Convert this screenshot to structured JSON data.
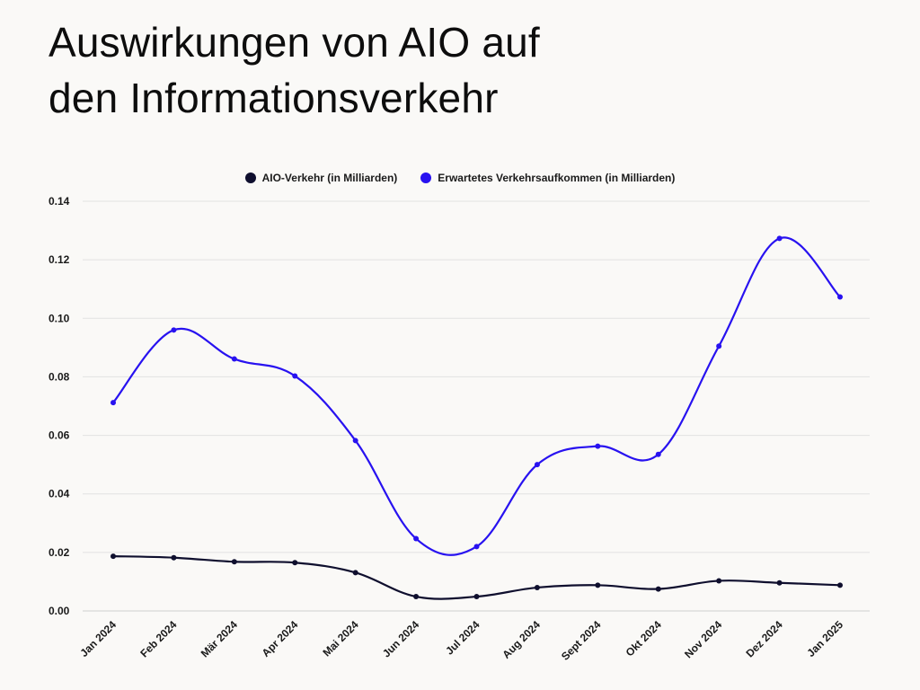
{
  "chart_data": {
    "type": "line",
    "title_lines": [
      "Auswirkungen von AIO auf",
      "den Informationsverkehr"
    ],
    "categories": [
      "Jan 2024",
      "Feb 2024",
      "Mär 2024",
      "Apr 2024",
      "Mai 2024",
      "Jun 2024",
      "Jul 2024",
      "Aug 2024",
      "Sept 2024",
      "Okt 2024",
      "Nov 2024",
      "Dez 2024",
      "Jan 2025"
    ],
    "series": [
      {
        "name": "AIO-Verkehr (in Milliarden)",
        "color": "#0f0f2e",
        "values": [
          0.0187,
          0.0182,
          0.0168,
          0.0165,
          0.0131,
          0.0049,
          0.0049,
          0.008,
          0.0088,
          0.0075,
          0.0103,
          0.0096,
          0.0088
        ]
      },
      {
        "name": "Erwartetes Verkehrsaufkommen (in Milliarden)",
        "color": "#2812f0",
        "values": [
          0.0712,
          0.096,
          0.0861,
          0.0803,
          0.0582,
          0.0247,
          0.022,
          0.05,
          0.0563,
          0.0535,
          0.0905,
          0.1273,
          0.1073
        ]
      }
    ],
    "ylim": [
      0,
      0.14
    ],
    "yticks": [
      "0.00",
      "0.02",
      "0.04",
      "0.06",
      "0.08",
      "0.10",
      "0.12",
      "0.14"
    ],
    "xlabel": "",
    "ylabel": "",
    "grid": true,
    "legend_position": "top-center"
  }
}
